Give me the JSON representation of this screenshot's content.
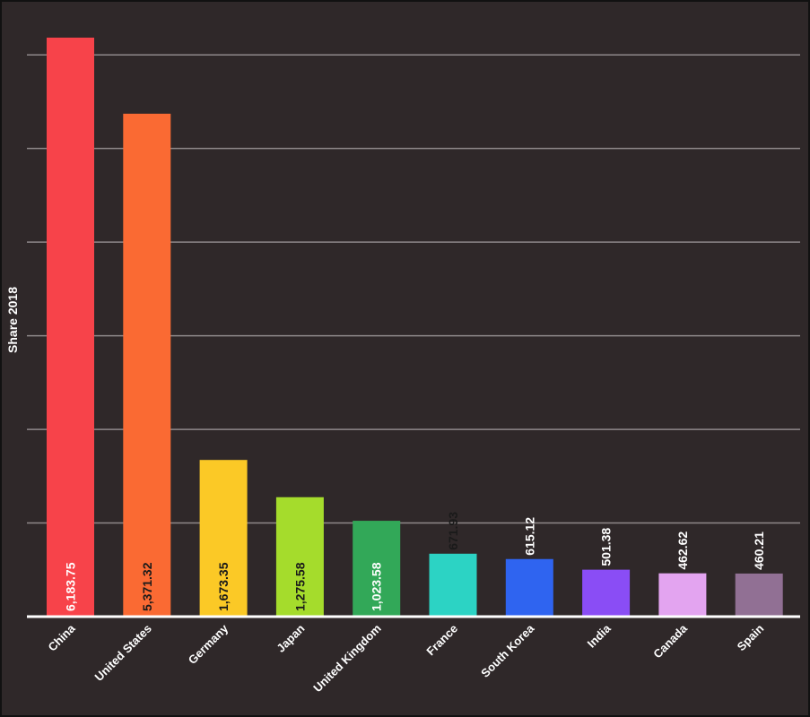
{
  "chart_data": {
    "type": "bar",
    "title": "",
    "xlabel": "",
    "ylabel": "Share 2018",
    "categories": [
      "China",
      "United States",
      "Germany",
      "Japan",
      "United Kingdom",
      "France",
      "South Korea",
      "India",
      "Canada",
      "Spain"
    ],
    "values": [
      6183.75,
      5371.32,
      1673.35,
      1275.58,
      1023.58,
      671.93,
      615.12,
      501.38,
      462.62,
      460.21
    ],
    "value_labels": [
      "6,183.75",
      "5,371.32",
      "1,673.35",
      "1,275.58",
      "1,023.58",
      "671.93",
      "615.12",
      "501.38",
      "462.62",
      "460.21"
    ],
    "colors": [
      "#f7434a",
      "#fa6a33",
      "#fbc926",
      "#a5dc2c",
      "#32a858",
      "#2cd3c4",
      "#2f64f0",
      "#8a4df5",
      "#e3a4f0",
      "#917094"
    ],
    "label_colors": [
      "#ffffff",
      "#1a1a1a",
      "#1a1a1a",
      "#1a1a1a",
      "#ffffff",
      "#1a1a1a",
      "#ffffff",
      "#ffffff",
      "#ffffff",
      "#ffffff"
    ],
    "ylim": [
      0,
      6400
    ],
    "gridlines": [
      1000,
      2000,
      3000,
      4000,
      5000,
      6000
    ],
    "grid": true,
    "legend": "none"
  }
}
